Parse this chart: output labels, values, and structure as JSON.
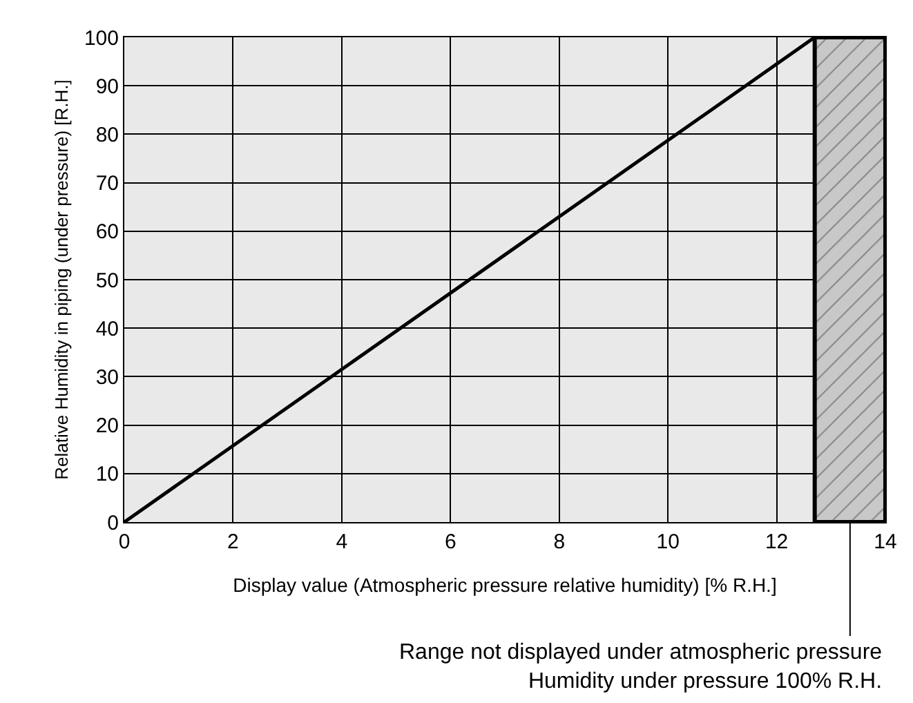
{
  "chart_data": {
    "type": "line",
    "xlabel": "Display value (Atmospheric pressure relative humidity) [% R.H.]",
    "ylabel": "Relative Humidity in piping (under pressure) [R.H.]",
    "x": [
      0,
      12.7
    ],
    "series": [
      {
        "color": "#000000",
        "values": [
          0,
          100
        ]
      }
    ],
    "xlim": [
      0,
      14
    ],
    "xticks": [
      0,
      2,
      4,
      6,
      8,
      10,
      12,
      14
    ],
    "ylim": [
      0,
      100
    ],
    "yticks": [
      0,
      10,
      20,
      30,
      40,
      50,
      60,
      70,
      80,
      90,
      100
    ],
    "grid": true,
    "marker": "none",
    "line_style": "solid",
    "bands": [
      {
        "axis": "x",
        "from": 12.7,
        "to": 14,
        "color": "#c8c8c8",
        "label": "Range not displayed under atmospheric pressure\nHumidity under pressure 100% R.H."
      }
    ]
  }
}
